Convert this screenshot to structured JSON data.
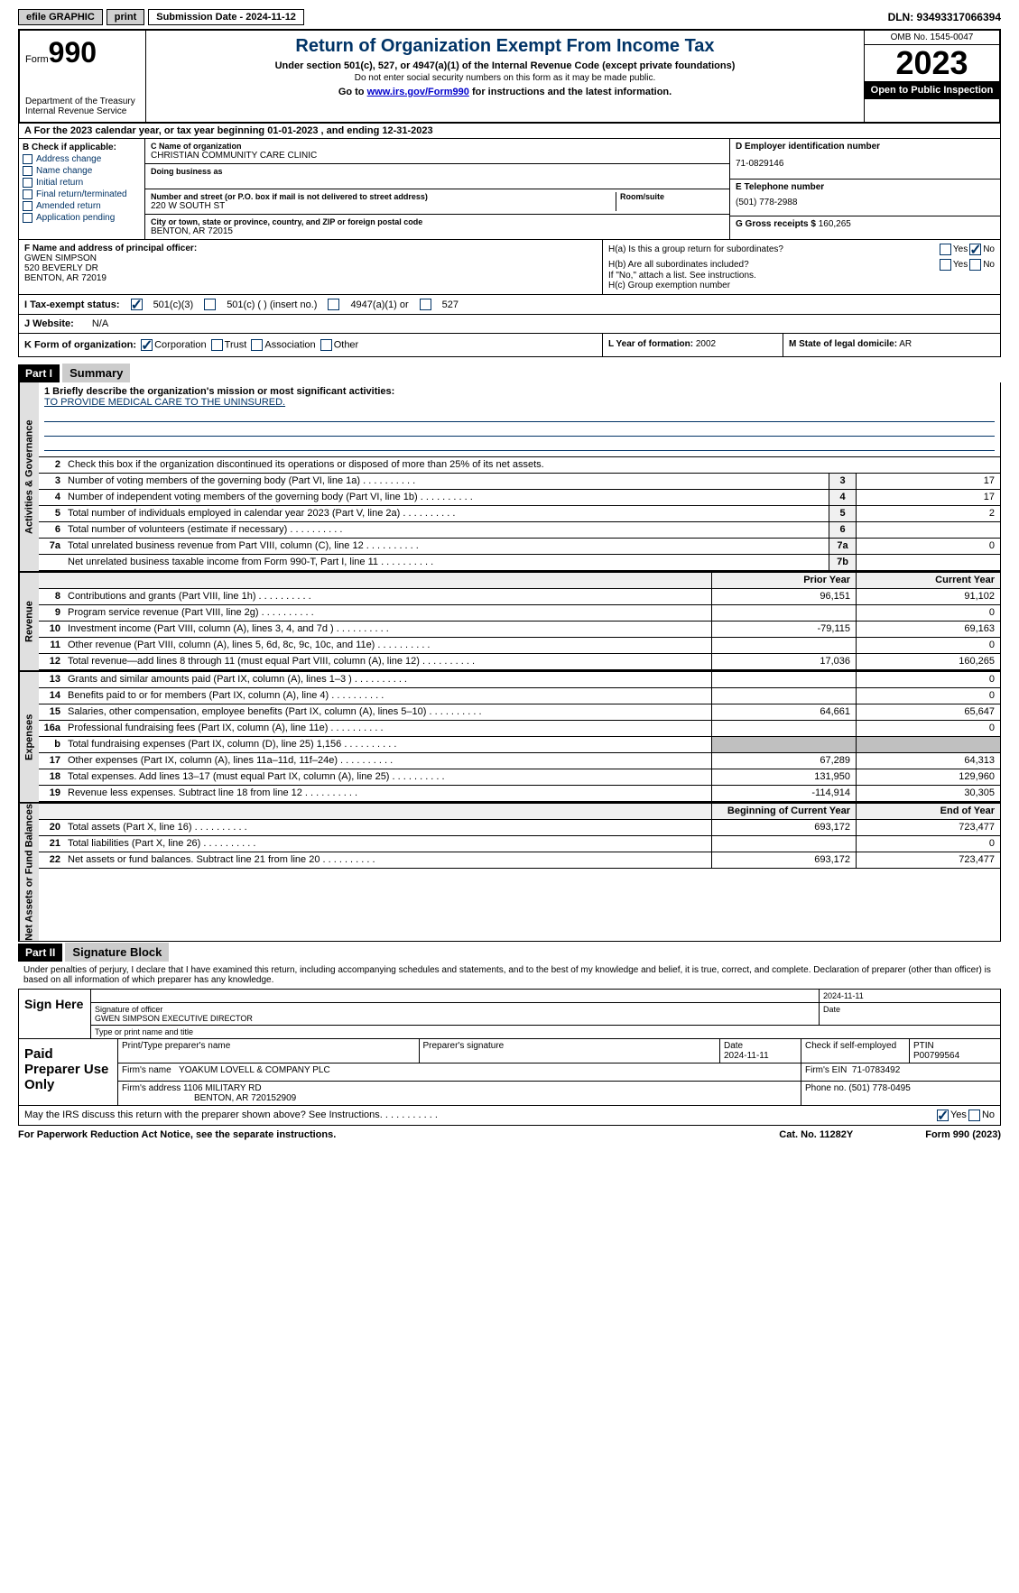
{
  "topbar": {
    "efile": "efile GRAPHIC",
    "print": "print",
    "submission": "Submission Date - 2024-11-12",
    "dln": "DLN: 93493317066394"
  },
  "header": {
    "form_prefix": "Form",
    "form_num": "990",
    "dept": "Department of the Treasury Internal Revenue Service",
    "title": "Return of Organization Exempt From Income Tax",
    "sub1": "Under section 501(c), 527, or 4947(a)(1) of the Internal Revenue Code (except private foundations)",
    "sub2": "Do not enter social security numbers on this form as it may be made public.",
    "sub3a": "Go to ",
    "sub3_link": "www.irs.gov/Form990",
    "sub3b": " for instructions and the latest information.",
    "omb": "OMB No. 1545-0047",
    "year": "2023",
    "open": "Open to Public Inspection"
  },
  "row_a": "A  For the 2023 calendar year, or tax year beginning 01-01-2023    , and ending 12-31-2023",
  "col_b": {
    "label": "B Check if applicable:",
    "items": [
      "Address change",
      "Name change",
      "Initial return",
      "Final return/terminated",
      "Amended return",
      "Application pending"
    ]
  },
  "col_c": {
    "name_lbl": "C Name of organization",
    "name": "CHRISTIAN COMMUNITY CARE CLINIC",
    "dba_lbl": "Doing business as",
    "addr_lbl": "Number and street (or P.O. box if mail is not delivered to street address)",
    "addr": "220 W SOUTH ST",
    "room_lbl": "Room/suite",
    "city_lbl": "City or town, state or province, country, and ZIP or foreign postal code",
    "city": "BENTON, AR  72015"
  },
  "col_d": {
    "ein_lbl": "D Employer identification number",
    "ein": "71-0829146",
    "tel_lbl": "E Telephone number",
    "tel": "(501) 778-2988",
    "gross_lbl": "G Gross receipts $",
    "gross": "160,265"
  },
  "f": {
    "lbl": "F  Name and address of principal officer:",
    "name": "GWEN SIMPSON",
    "addr1": "520 BEVERLY DR",
    "addr2": "BENTON, AR  72019"
  },
  "h": {
    "ha": "H(a)  Is this a group return for subordinates?",
    "hb": "H(b)  Are all subordinates included?",
    "hb2": "If \"No,\" attach a list. See instructions.",
    "hc": "H(c)  Group exemption number",
    "yes": "Yes",
    "no": "No"
  },
  "i": {
    "lbl": "I    Tax-exempt status:",
    "opt1": "501(c)(3)",
    "opt2": "501(c) (  ) (insert no.)",
    "opt3": "4947(a)(1) or",
    "opt4": "527"
  },
  "j": {
    "lbl": "J    Website:",
    "val": "N/A"
  },
  "k": {
    "lbl": "K Form of organization:",
    "opts": [
      "Corporation",
      "Trust",
      "Association",
      "Other"
    ],
    "l_lbl": "L Year of formation:",
    "l_val": "2002",
    "m_lbl": "M State of legal domicile:",
    "m_val": "AR"
  },
  "part1": {
    "hdr": "Part I",
    "title": "Summary",
    "briefly_lbl": "1  Briefly describe the organization's mission or most significant activities:",
    "briefly": "TO PROVIDE MEDICAL CARE TO THE UNINSURED.",
    "line2": "Check this box       if the organization discontinued its operations or disposed of more than 25% of its net assets.",
    "tabs": {
      "gov": "Activities & Governance",
      "rev": "Revenue",
      "exp": "Expenses",
      "net": "Net Assets or Fund Balances"
    },
    "col_prior": "Prior Year",
    "col_current": "Current Year",
    "col_begin": "Beginning of Current Year",
    "col_end": "End of Year",
    "gov_lines": [
      {
        "n": "3",
        "t": "Number of voting members of the governing body (Part VI, line 1a)",
        "box": "3",
        "v": "17"
      },
      {
        "n": "4",
        "t": "Number of independent voting members of the governing body (Part VI, line 1b)",
        "box": "4",
        "v": "17"
      },
      {
        "n": "5",
        "t": "Total number of individuals employed in calendar year 2023 (Part V, line 2a)",
        "box": "5",
        "v": "2"
      },
      {
        "n": "6",
        "t": "Total number of volunteers (estimate if necessary)",
        "box": "6",
        "v": ""
      },
      {
        "n": "7a",
        "t": "Total unrelated business revenue from Part VIII, column (C), line 12",
        "box": "7a",
        "v": "0"
      },
      {
        "n": "",
        "t": "Net unrelated business taxable income from Form 990-T, Part I, line 11",
        "box": "7b",
        "v": ""
      }
    ],
    "rev_lines": [
      {
        "n": "8",
        "t": "Contributions and grants (Part VIII, line 1h)",
        "p": "96,151",
        "c": "91,102"
      },
      {
        "n": "9",
        "t": "Program service revenue (Part VIII, line 2g)",
        "p": "",
        "c": "0"
      },
      {
        "n": "10",
        "t": "Investment income (Part VIII, column (A), lines 3, 4, and 7d )",
        "p": "-79,115",
        "c": "69,163"
      },
      {
        "n": "11",
        "t": "Other revenue (Part VIII, column (A), lines 5, 6d, 8c, 9c, 10c, and 11e)",
        "p": "",
        "c": "0"
      },
      {
        "n": "12",
        "t": "Total revenue—add lines 8 through 11 (must equal Part VIII, column (A), line 12)",
        "p": "17,036",
        "c": "160,265"
      }
    ],
    "exp_lines": [
      {
        "n": "13",
        "t": "Grants and similar amounts paid (Part IX, column (A), lines 1–3 )",
        "p": "",
        "c": "0"
      },
      {
        "n": "14",
        "t": "Benefits paid to or for members (Part IX, column (A), line 4)",
        "p": "",
        "c": "0"
      },
      {
        "n": "15",
        "t": "Salaries, other compensation, employee benefits (Part IX, column (A), lines 5–10)",
        "p": "64,661",
        "c": "65,647"
      },
      {
        "n": "16a",
        "t": "Professional fundraising fees (Part IX, column (A), line 11e)",
        "p": "",
        "c": "0"
      },
      {
        "n": "b",
        "t": "Total fundraising expenses (Part IX, column (D), line 25) 1,156",
        "p": "gray",
        "c": "gray"
      },
      {
        "n": "17",
        "t": "Other expenses (Part IX, column (A), lines 11a–11d, 11f–24e)",
        "p": "67,289",
        "c": "64,313"
      },
      {
        "n": "18",
        "t": "Total expenses. Add lines 13–17 (must equal Part IX, column (A), line 25)",
        "p": "131,950",
        "c": "129,960"
      },
      {
        "n": "19",
        "t": "Revenue less expenses. Subtract line 18 from line 12",
        "p": "-114,914",
        "c": "30,305"
      }
    ],
    "net_lines": [
      {
        "n": "20",
        "t": "Total assets (Part X, line 16)",
        "p": "693,172",
        "c": "723,477"
      },
      {
        "n": "21",
        "t": "Total liabilities (Part X, line 26)",
        "p": "",
        "c": "0"
      },
      {
        "n": "22",
        "t": "Net assets or fund balances. Subtract line 21 from line 20",
        "p": "693,172",
        "c": "723,477"
      }
    ]
  },
  "part2": {
    "hdr": "Part II",
    "title": "Signature Block",
    "decl": "Under penalties of perjury, I declare that I have examined this return, including accompanying schedules and statements, and to the best of my knowledge and belief, it is true, correct, and complete. Declaration of preparer (other than officer) is based on all information of which preparer has any knowledge.",
    "sign_here": "Sign Here",
    "sig_date": "2024-11-11",
    "sig_lbl": "Signature of officer",
    "sig_name": "GWEN SIMPSON  EXECUTIVE DIRECTOR",
    "sig_type_lbl": "Type or print name and title",
    "date_lbl": "Date",
    "paid": "Paid Preparer Use Only",
    "prep_name_lbl": "Print/Type preparer's name",
    "prep_sig_lbl": "Preparer's signature",
    "prep_date": "2024-11-11",
    "check_self": "Check        if self-employed",
    "ptin_lbl": "PTIN",
    "ptin": "P00799564",
    "firm_name_lbl": "Firm's name",
    "firm_name": "YOAKUM LOVELL & COMPANY PLC",
    "firm_ein_lbl": "Firm's EIN",
    "firm_ein": "71-0783492",
    "firm_addr_lbl": "Firm's address",
    "firm_addr1": "1106 MILITARY RD",
    "firm_addr2": "BENTON, AR  720152909",
    "phone_lbl": "Phone no.",
    "phone": "(501) 778-0495",
    "discuss": "May the IRS discuss this return with the preparer shown above? See Instructions.",
    "yes": "Yes",
    "no": "No"
  },
  "footer": {
    "left": "For Paperwork Reduction Act Notice, see the separate instructions.",
    "mid": "Cat. No. 11282Y",
    "right": "Form 990 (2023)"
  }
}
